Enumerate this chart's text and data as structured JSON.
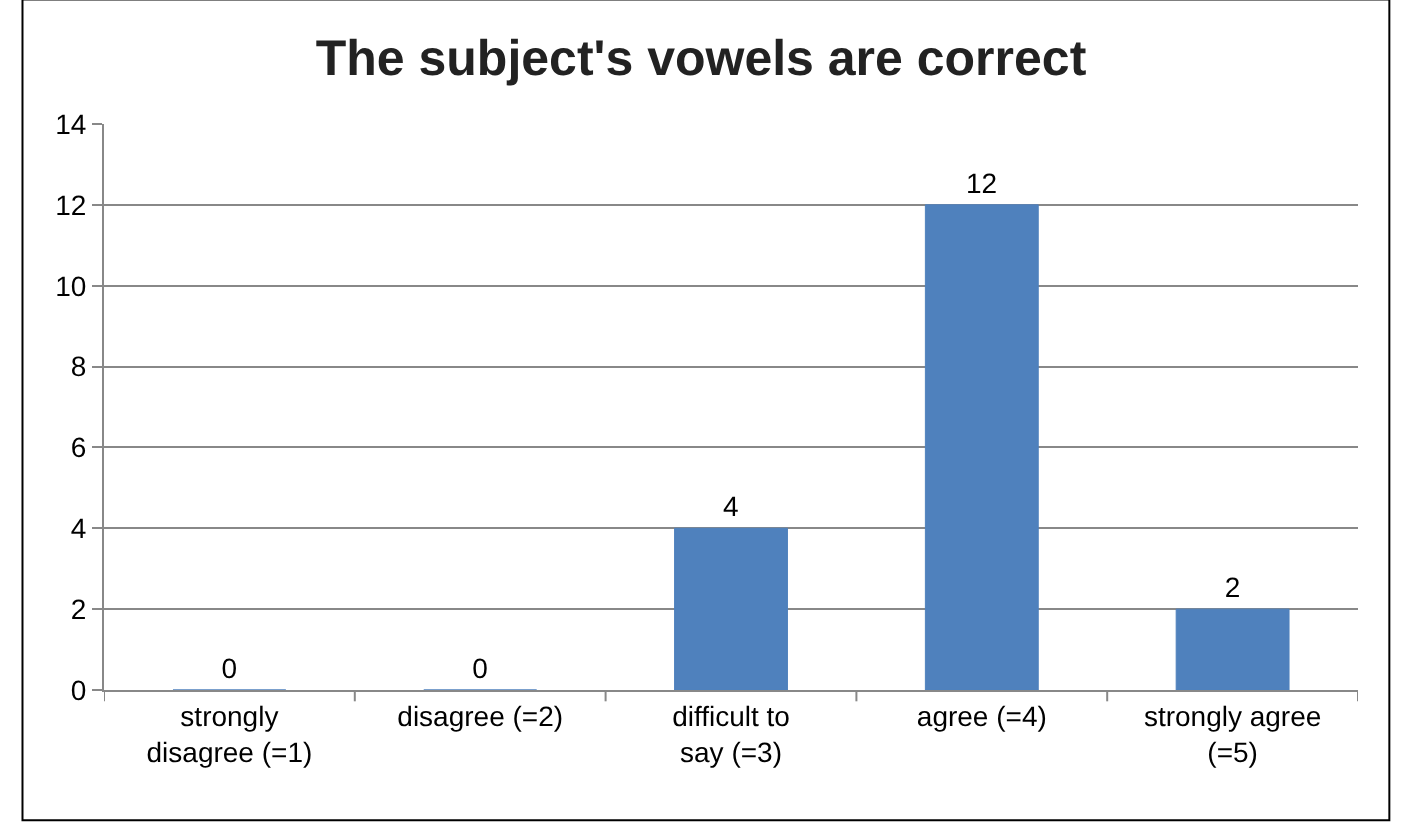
{
  "chart_data": {
    "type": "bar",
    "title": "The subject's vowels are correct",
    "categories": [
      "strongly disagree (=1)",
      "disagree (=2)",
      "difficult to say (=3)",
      "agree (=4)",
      "strongly agree (=5)"
    ],
    "values": [
      0,
      0,
      4,
      12,
      2
    ],
    "color": "#4f81bd",
    "ylim": [
      0,
      14
    ],
    "yticks": [
      0,
      2,
      4,
      6,
      8,
      10,
      12,
      14
    ],
    "grid": "y",
    "data_labels": true,
    "legend": false
  }
}
